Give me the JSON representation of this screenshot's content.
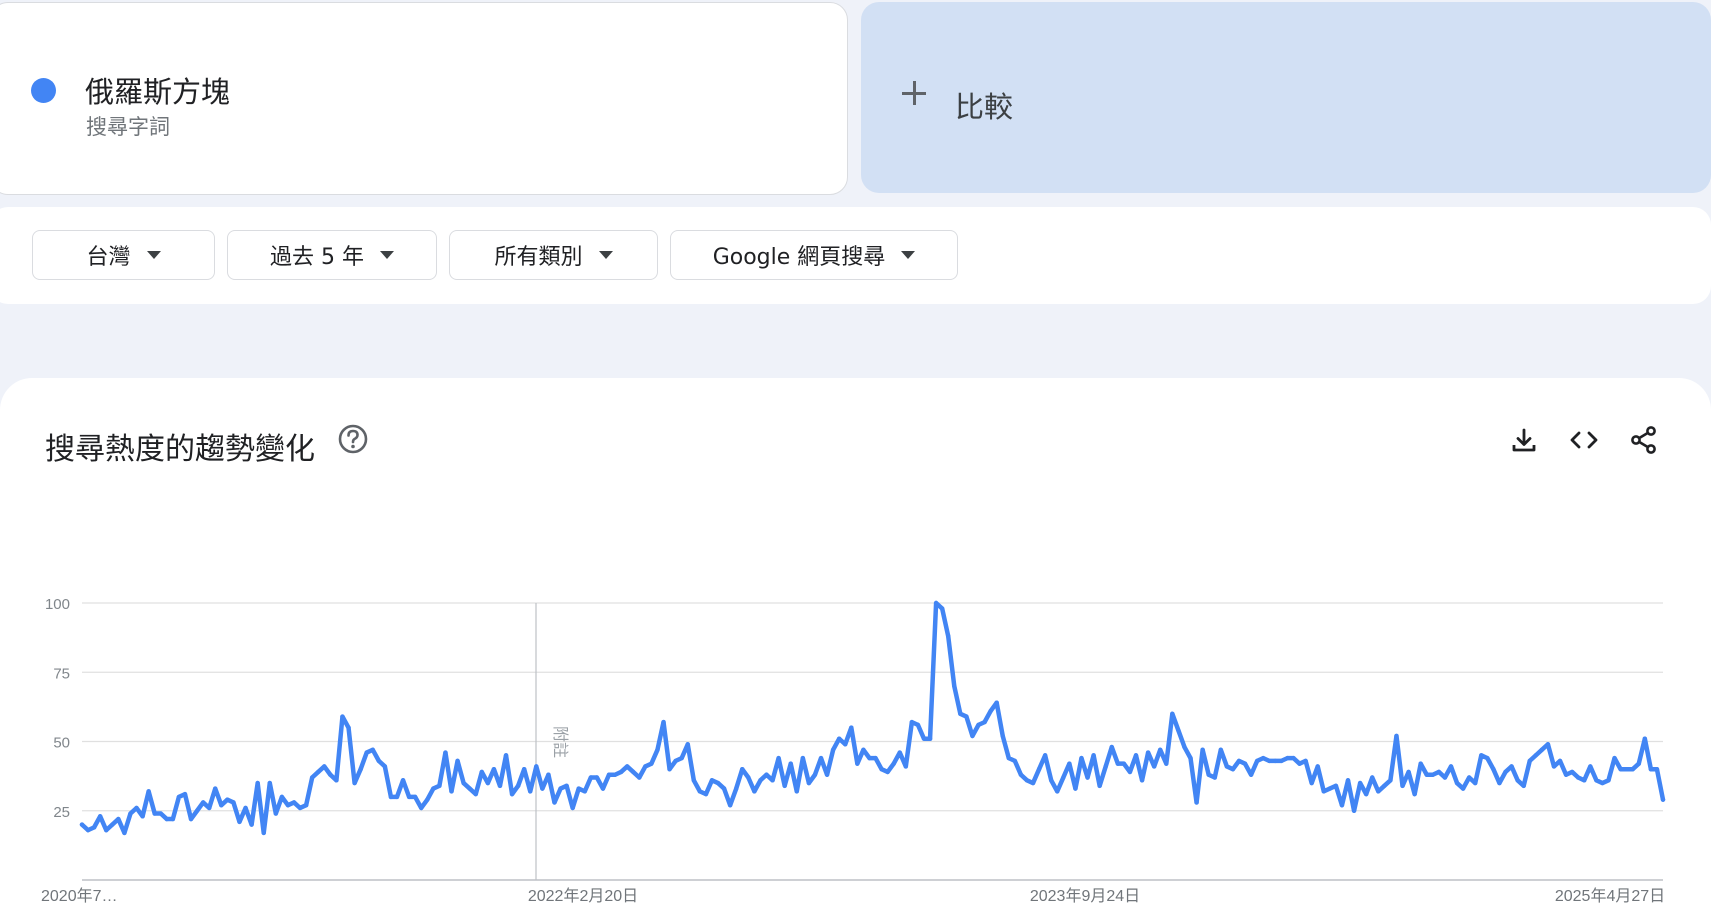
{
  "term": {
    "name": "俄羅斯方塊",
    "type": "搜尋字詞",
    "color": "#4285f4"
  },
  "compare": {
    "label": "比較"
  },
  "filters": {
    "region": "台灣",
    "time": "過去 5 年",
    "category": "所有類別",
    "property": "Google 網頁搜尋"
  },
  "chart": {
    "title": "搜尋熱度的趨勢變化",
    "icons": [
      "help-icon",
      "download-icon",
      "embed-icon",
      "share-icon"
    ]
  },
  "chart_data": {
    "type": "line",
    "title": "搜尋熱度的趨勢變化",
    "xlabel": "",
    "ylabel": "",
    "ylim": [
      0,
      100
    ],
    "yticks": [
      25,
      50,
      75,
      100
    ],
    "xticks": [
      "2020年7…",
      "2022年2月20日",
      "2023年9月24日",
      "2025年4月27日"
    ],
    "annotation": {
      "label": "附註",
      "x": "2022年2月20日"
    },
    "grid": true,
    "series": [
      {
        "color": "#4285f4",
        "values": [
          20,
          18,
          19,
          23,
          18,
          20,
          22,
          17,
          24,
          26,
          23,
          32,
          24,
          24,
          22,
          22,
          30,
          31,
          22,
          25,
          28,
          26,
          33,
          27,
          29,
          28,
          21,
          26,
          20,
          35,
          17,
          35,
          24,
          30,
          27,
          28,
          26,
          27,
          37,
          39,
          41,
          38,
          36,
          59,
          55,
          35,
          40,
          46,
          47,
          43,
          41,
          30,
          30,
          36,
          30,
          30,
          26,
          29,
          33,
          34,
          46,
          32,
          43,
          35,
          33,
          31,
          39,
          35,
          40,
          34,
          45,
          31,
          34,
          40,
          32,
          41,
          33,
          38,
          28,
          33,
          34,
          26,
          33,
          32,
          37,
          37,
          33,
          38,
          38,
          39,
          41,
          39,
          37,
          41,
          42,
          47,
          57,
          40,
          43,
          44,
          49,
          36,
          32,
          31,
          36,
          35,
          33,
          27,
          33,
          40,
          37,
          32,
          36,
          38,
          36,
          44,
          34,
          42,
          32,
          44,
          35,
          38,
          44,
          38,
          47,
          51,
          49,
          55,
          42,
          47,
          44,
          44,
          40,
          39,
          42,
          46,
          41,
          57,
          56,
          51,
          51,
          100,
          98,
          88,
          70,
          60,
          59,
          52,
          56,
          57,
          61,
          64,
          52,
          44,
          43,
          38,
          36,
          35,
          40,
          45,
          36,
          32,
          37,
          42,
          33,
          44,
          37,
          45,
          34,
          41,
          48,
          42,
          42,
          39,
          45,
          36,
          46,
          41,
          47,
          42,
          60,
          54,
          48,
          44,
          28,
          47,
          38,
          37,
          47,
          41,
          40,
          43,
          42,
          38,
          43,
          44,
          43,
          43,
          43,
          44,
          44,
          42,
          43,
          35,
          41,
          32,
          33,
          34,
          27,
          36,
          25,
          35,
          31,
          37,
          32,
          34,
          36,
          52,
          34,
          39,
          31,
          42,
          38,
          38,
          39,
          37,
          41,
          35,
          33,
          37,
          35,
          45,
          44,
          40,
          35,
          39,
          41,
          36,
          34,
          43,
          45,
          47,
          49,
          41,
          43,
          38,
          39,
          37,
          36,
          41,
          36,
          35,
          36,
          44,
          40,
          40,
          40,
          42,
          51,
          40,
          40,
          29
        ]
      }
    ]
  }
}
